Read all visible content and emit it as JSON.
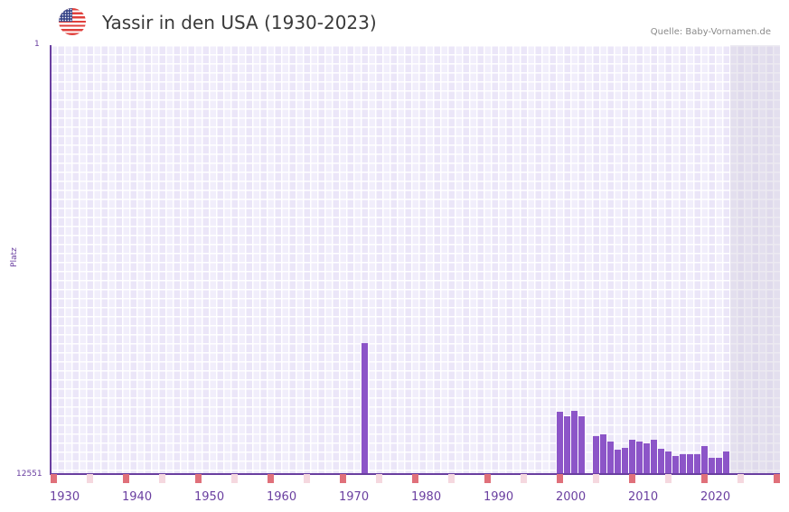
{
  "header": {
    "flag_icon": "us-flag-icon",
    "title": "Yassir in den USA (1930-2023)",
    "source": "Quelle: Baby-Vornamen.de"
  },
  "axes": {
    "y_top_label": "1",
    "y_bottom_label": "12551",
    "y_title": "Platz",
    "x_labels": [
      "1930",
      "1940",
      "1950",
      "1960",
      "1970",
      "1980",
      "1990",
      "2000",
      "2010",
      "2020"
    ]
  },
  "colors": {
    "bar": "#8c55c8",
    "axis": "#6a3fa0",
    "major_tick": "#e0707a",
    "minor_tick": "#f5d8df"
  },
  "chart_data": {
    "type": "bar",
    "title": "Yassir in den USA (1930-2023)",
    "subtitle": "Quelle: Baby-Vornamen.de",
    "xlabel": "",
    "ylabel": "Platz",
    "ylim": [
      12551,
      1
    ],
    "y_inverted": true,
    "x_range": [
      1930,
      2023
    ],
    "grid": true,
    "legend": null,
    "categories": [
      1973,
      2000,
      2001,
      2002,
      2003,
      2005,
      2006,
      2007,
      2008,
      2009,
      2010,
      2011,
      2012,
      2013,
      2014,
      2015,
      2016,
      2017,
      2018,
      2019,
      2020,
      2021,
      2022,
      2023
    ],
    "values": [
      8720,
      10728,
      10860,
      10702,
      10860,
      11441,
      11388,
      11600,
      11837,
      11785,
      11547,
      11600,
      11653,
      11547,
      11811,
      11890,
      12022,
      11969,
      11969,
      11969,
      11732,
      12075,
      12075,
      11890
    ]
  }
}
